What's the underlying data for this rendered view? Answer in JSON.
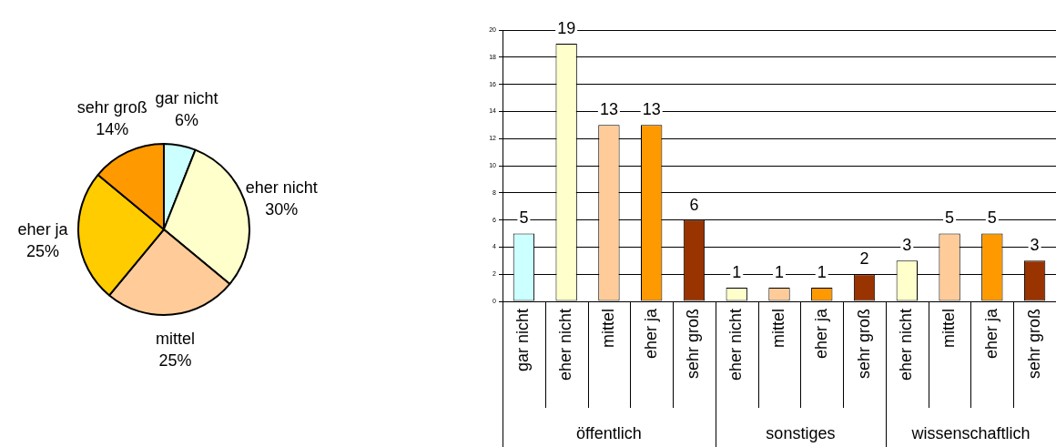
{
  "chart_data": [
    {
      "type": "pie",
      "categories": [
        "gar nicht",
        "eher nicht",
        "mittel",
        "eher ja",
        "sehr groß"
      ],
      "values": [
        6,
        30,
        25,
        25,
        14
      ],
      "value_labels": [
        "6%",
        "30%",
        "25%",
        "25%",
        "14%"
      ],
      "colors": [
        "#ccffff",
        "#ffffcc",
        "#ffcc99",
        "#ffcc00",
        "#ff9900"
      ],
      "legend": false
    },
    {
      "type": "bar",
      "categories": [
        "gar nicht",
        "eher nicht",
        "mittel",
        "eher ja",
        "sehr groß",
        "eher nicht",
        "mittel",
        "eher ja",
        "sehr groß",
        "eher nicht",
        "mittel",
        "eher ja",
        "sehr groß"
      ],
      "values": [
        5,
        19,
        13,
        13,
        6,
        1,
        1,
        1,
        2,
        3,
        5,
        5,
        3
      ],
      "colors": [
        "#ccffff",
        "#ffffcc",
        "#ffcc99",
        "#ff9900",
        "#993300",
        "#ffffcc",
        "#ffcc99",
        "#ff9900",
        "#993300",
        "#ffffcc",
        "#ffcc99",
        "#ff9900",
        "#993300"
      ],
      "annotations": [
        "öffentlich",
        "sonstiges",
        "wissenschaftlich"
      ],
      "ylim": [
        0,
        20
      ],
      "yticks": [
        0,
        2,
        4,
        6,
        8,
        10,
        12,
        14,
        16,
        18,
        20
      ],
      "grid": "y",
      "data_labels": true,
      "legend": false
    }
  ]
}
